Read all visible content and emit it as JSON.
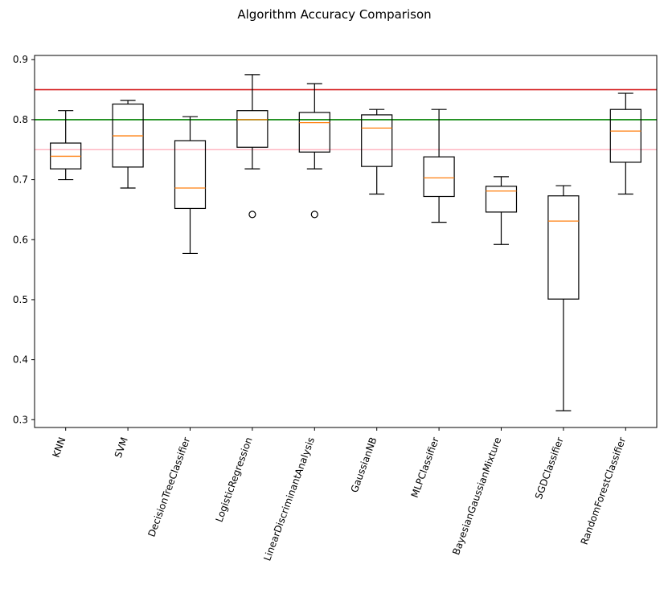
{
  "chart_data": {
    "type": "boxplot",
    "title": "Algorithm Accuracy Comparison",
    "xlabel": "",
    "ylabel": "",
    "ylim": [
      0.287,
      0.907
    ],
    "yticks": [
      0.3,
      0.4,
      0.5,
      0.6,
      0.7,
      0.8,
      0.9
    ],
    "ytick_labels": [
      "0.3",
      "0.4",
      "0.5",
      "0.6",
      "0.7",
      "0.8",
      "0.9"
    ],
    "categories": [
      "KNN",
      "SVM",
      "DecisionTreeClassifier",
      "LogisticRegression",
      "LinearDiscriminantAnalysis",
      "GaussianNB",
      "MLPClassifier",
      "BayesianGaussianMixture",
      "SGDClassifier",
      "RandomForestClassifier"
    ],
    "boxes": [
      {
        "whislo": 0.7,
        "q1": 0.718,
        "med": 0.739,
        "q3": 0.761,
        "whishi": 0.815,
        "fliers": []
      },
      {
        "whislo": 0.686,
        "q1": 0.721,
        "med": 0.773,
        "q3": 0.826,
        "whishi": 0.832,
        "fliers": []
      },
      {
        "whislo": 0.577,
        "q1": 0.652,
        "med": 0.686,
        "q3": 0.765,
        "whishi": 0.805,
        "fliers": []
      },
      {
        "whislo": 0.718,
        "q1": 0.754,
        "med": 0.8,
        "q3": 0.815,
        "whishi": 0.875,
        "fliers": [
          0.642
        ]
      },
      {
        "whislo": 0.718,
        "q1": 0.746,
        "med": 0.795,
        "q3": 0.812,
        "whishi": 0.86,
        "fliers": [
          0.642
        ]
      },
      {
        "whislo": 0.676,
        "q1": 0.722,
        "med": 0.786,
        "q3": 0.808,
        "whishi": 0.817,
        "fliers": []
      },
      {
        "whislo": 0.629,
        "q1": 0.672,
        "med": 0.703,
        "q3": 0.738,
        "whishi": 0.817,
        "fliers": []
      },
      {
        "whislo": 0.592,
        "q1": 0.646,
        "med": 0.681,
        "q3": 0.689,
        "whishi": 0.705,
        "fliers": []
      },
      {
        "whislo": 0.315,
        "q1": 0.501,
        "med": 0.631,
        "q3": 0.673,
        "whishi": 0.69,
        "fliers": []
      },
      {
        "whislo": 0.676,
        "q1": 0.729,
        "med": 0.781,
        "q3": 0.817,
        "whishi": 0.844,
        "fliers": []
      }
    ],
    "reference_lines": [
      {
        "y": 0.85,
        "color": "#d62728"
      },
      {
        "y": 0.8,
        "color": "#008000"
      },
      {
        "y": 0.75,
        "color": "#ffb6c1"
      }
    ],
    "colors": {
      "box": "#000000",
      "median": "#ff7f0e",
      "axes": "#000000"
    },
    "grid": false,
    "xtick_rotation_deg": 70
  }
}
